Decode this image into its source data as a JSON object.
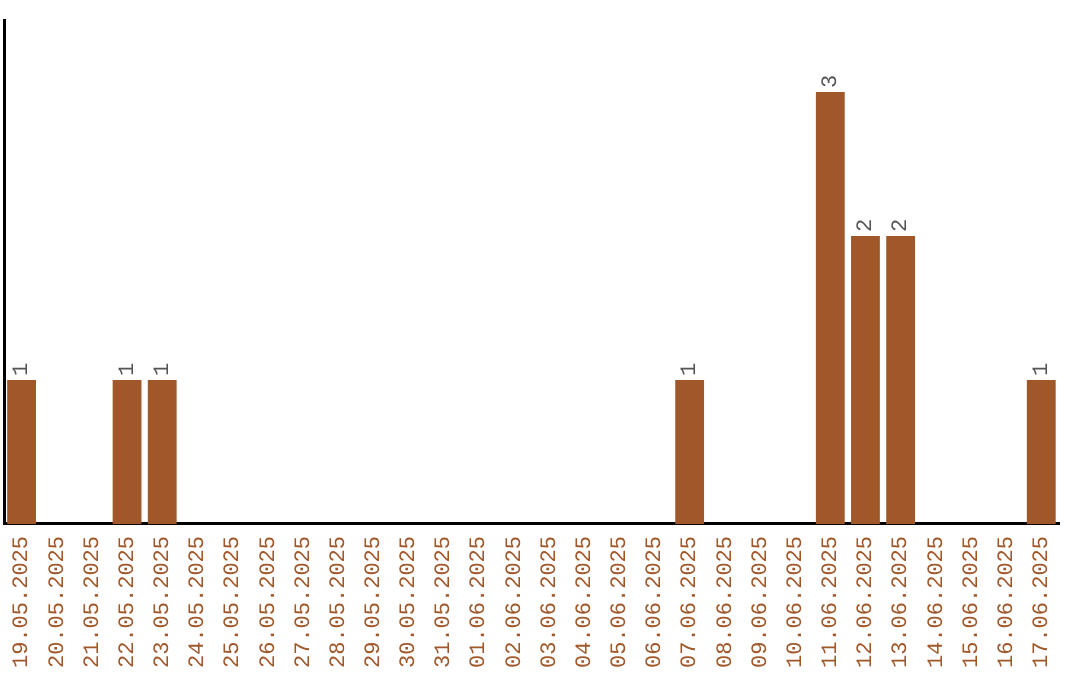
{
  "chart_data": {
    "type": "bar",
    "categories": [
      "19.05.2025",
      "20.05.2025",
      "21.05.2025",
      "22.05.2025",
      "23.05.2025",
      "24.05.2025",
      "25.05.2025",
      "26.05.2025",
      "27.05.2025",
      "28.05.2025",
      "29.05.2025",
      "30.05.2025",
      "31.05.2025",
      "01.06.2025",
      "02.06.2025",
      "03.06.2025",
      "04.06.2025",
      "05.06.2025",
      "06.06.2025",
      "07.06.2025",
      "08.06.2025",
      "09.06.2025",
      "10.06.2025",
      "11.06.2025",
      "12.06.2025",
      "13.06.2025",
      "14.06.2025",
      "15.06.2025",
      "16.06.2025",
      "17.06.2025"
    ],
    "values": [
      1,
      0,
      0,
      1,
      1,
      0,
      0,
      0,
      0,
      0,
      0,
      0,
      0,
      0,
      0,
      0,
      0,
      0,
      0,
      1,
      0,
      0,
      0,
      3,
      2,
      2,
      0,
      0,
      0,
      1
    ],
    "value_labels": [
      "1",
      null,
      null,
      "1",
      "1",
      null,
      null,
      null,
      null,
      null,
      null,
      null,
      null,
      null,
      null,
      null,
      null,
      null,
      null,
      "1",
      null,
      null,
      null,
      "3",
      "2",
      "2",
      null,
      null,
      null,
      "1"
    ],
    "color": "#a0582a",
    "grid": false,
    "legend": false,
    "tick_labels": "x"
  }
}
